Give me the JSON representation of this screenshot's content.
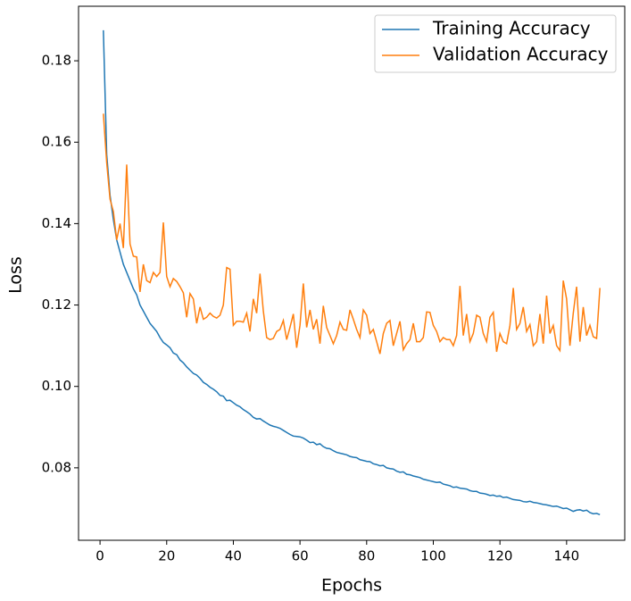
{
  "chart_data": {
    "type": "line",
    "x_label": "Epochs",
    "y_label": "Loss",
    "x": [
      1,
      2,
      3,
      4,
      5,
      6,
      7,
      8,
      9,
      10,
      11,
      12,
      13,
      14,
      15,
      16,
      17,
      18,
      19,
      20,
      21,
      22,
      23,
      24,
      25,
      26,
      27,
      28,
      29,
      30,
      31,
      32,
      33,
      34,
      35,
      36,
      37,
      38,
      39,
      40,
      41,
      42,
      43,
      44,
      45,
      46,
      47,
      48,
      49,
      50,
      51,
      52,
      53,
      54,
      55,
      56,
      57,
      58,
      59,
      60,
      61,
      62,
      63,
      64,
      65,
      66,
      67,
      68,
      69,
      70,
      71,
      72,
      73,
      74,
      75,
      76,
      77,
      78,
      79,
      80,
      81,
      82,
      83,
      84,
      85,
      86,
      87,
      88,
      89,
      90,
      91,
      92,
      93,
      94,
      95,
      96,
      97,
      98,
      99,
      100,
      101,
      102,
      103,
      104,
      105,
      106,
      107,
      108,
      109,
      110,
      111,
      112,
      113,
      114,
      115,
      116,
      117,
      118,
      119,
      120,
      121,
      122,
      123,
      124,
      125,
      126,
      127,
      128,
      129,
      130,
      131,
      132,
      133,
      134,
      135,
      136,
      137,
      138,
      139,
      140,
      141,
      142,
      143,
      144,
      145,
      146,
      147,
      148,
      149,
      150
    ],
    "series": [
      {
        "name": "Training Accuracy",
        "color": "#1f77b4",
        "values": [
          0.1875,
          0.157,
          0.147,
          0.141,
          0.136,
          0.133,
          0.13,
          0.128,
          0.126,
          0.124,
          0.1225,
          0.12,
          0.1185,
          0.117,
          0.1155,
          0.1145,
          0.1135,
          0.112,
          0.1108,
          0.1102,
          0.1095,
          0.1082,
          0.1078,
          0.1065,
          0.1058,
          0.1048,
          0.104,
          0.1032,
          0.1028,
          0.102,
          0.101,
          0.1005,
          0.0998,
          0.0993,
          0.0987,
          0.0978,
          0.0976,
          0.0965,
          0.0966,
          0.096,
          0.0954,
          0.095,
          0.0943,
          0.0938,
          0.0932,
          0.0924,
          0.092,
          0.0921,
          0.0915,
          0.091,
          0.0905,
          0.0902,
          0.09,
          0.0897,
          0.0892,
          0.0887,
          0.0882,
          0.0878,
          0.0877,
          0.0876,
          0.0873,
          0.0868,
          0.0862,
          0.0863,
          0.0857,
          0.0859,
          0.0852,
          0.0848,
          0.0847,
          0.0842,
          0.0838,
          0.0836,
          0.0834,
          0.0832,
          0.0828,
          0.0826,
          0.0825,
          0.082,
          0.0818,
          0.0816,
          0.0815,
          0.081,
          0.0808,
          0.0805,
          0.0806,
          0.08,
          0.0798,
          0.0797,
          0.0792,
          0.0789,
          0.079,
          0.0784,
          0.0783,
          0.078,
          0.0778,
          0.0776,
          0.0772,
          0.077,
          0.0768,
          0.0766,
          0.0764,
          0.0765,
          0.076,
          0.0758,
          0.0756,
          0.0752,
          0.0753,
          0.075,
          0.0749,
          0.0748,
          0.0744,
          0.0742,
          0.0742,
          0.0738,
          0.0737,
          0.0735,
          0.0732,
          0.0733,
          0.073,
          0.0731,
          0.0727,
          0.0728,
          0.0725,
          0.0722,
          0.0721,
          0.072,
          0.0717,
          0.0716,
          0.0718,
          0.0715,
          0.0714,
          0.0712,
          0.071,
          0.0709,
          0.0707,
          0.0705,
          0.0706,
          0.0703,
          0.07,
          0.0701,
          0.0697,
          0.0693,
          0.0696,
          0.0697,
          0.0694,
          0.0696,
          0.069,
          0.0687,
          0.0688,
          0.0685
        ]
      },
      {
        "name": "Validation Accuracy",
        "color": "#ff7f0e",
        "values": [
          0.167,
          0.155,
          0.146,
          0.143,
          0.136,
          0.14,
          0.134,
          0.1545,
          0.135,
          0.132,
          0.1318,
          0.1232,
          0.13,
          0.126,
          0.1255,
          0.128,
          0.127,
          0.128,
          0.1403,
          0.127,
          0.1245,
          0.1265,
          0.1258,
          0.1245,
          0.123,
          0.117,
          0.1228,
          0.1215,
          0.1155,
          0.1195,
          0.1165,
          0.117,
          0.118,
          0.1172,
          0.1168,
          0.1175,
          0.12,
          0.1292,
          0.1288,
          0.115,
          0.116,
          0.116,
          0.1158,
          0.118,
          0.1135,
          0.1215,
          0.118,
          0.1277,
          0.1185,
          0.112,
          0.1115,
          0.1118,
          0.1135,
          0.114,
          0.1162,
          0.1115,
          0.1145,
          0.1178,
          0.1095,
          0.115,
          0.1253,
          0.1145,
          0.1188,
          0.114,
          0.1165,
          0.1105,
          0.1198,
          0.1145,
          0.1125,
          0.1105,
          0.1125,
          0.1158,
          0.114,
          0.1138,
          0.1188,
          0.1165,
          0.114,
          0.112,
          0.1188,
          0.1175,
          0.113,
          0.114,
          0.111,
          0.108,
          0.113,
          0.1155,
          0.1162,
          0.11,
          0.113,
          0.116,
          0.109,
          0.1105,
          0.1115,
          0.1155,
          0.111,
          0.111,
          0.112,
          0.1183,
          0.1182,
          0.115,
          0.1135,
          0.111,
          0.112,
          0.1115,
          0.1115,
          0.11,
          0.1125,
          0.1247,
          0.1125,
          0.1178,
          0.111,
          0.113,
          0.1175,
          0.117,
          0.113,
          0.111,
          0.117,
          0.1182,
          0.1085,
          0.113,
          0.111,
          0.1105,
          0.115,
          0.1242,
          0.114,
          0.1155,
          0.1195,
          0.1135,
          0.1152,
          0.11,
          0.111,
          0.1178,
          0.1105,
          0.1223,
          0.113,
          0.115,
          0.11,
          0.1088,
          0.126,
          0.1215,
          0.11,
          0.118,
          0.1245,
          0.111,
          0.1195,
          0.1125,
          0.115,
          0.1122,
          0.1118,
          0.1242
        ]
      }
    ],
    "xlim": [
      -6.45,
      157.45
    ],
    "xticks": [
      0,
      20,
      40,
      60,
      80,
      100,
      120,
      140
    ],
    "ylim": [
      0.0622,
      0.1934
    ],
    "yticks": [
      0.08,
      {
        "value": 0.1,
        "label": "0.10"
      },
      0.12,
      0.14,
      0.16,
      0.18
    ],
    "grid": false,
    "legend": "upper right"
  }
}
